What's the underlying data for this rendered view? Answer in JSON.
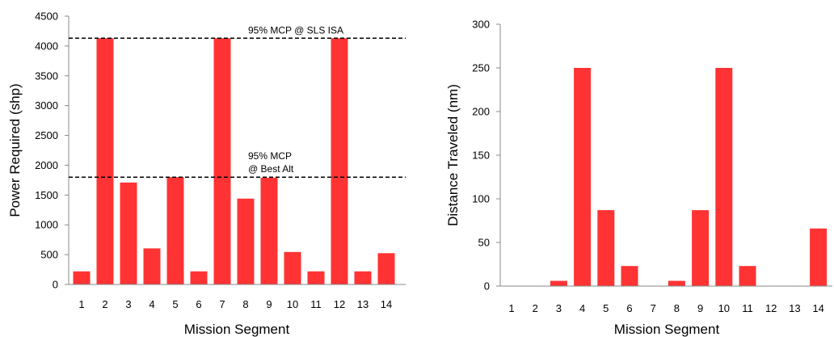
{
  "chart_data": [
    {
      "type": "bar",
      "categories": [
        "1",
        "2",
        "3",
        "4",
        "5",
        "6",
        "7",
        "8",
        "9",
        "10",
        "11",
        "12",
        "13",
        "14"
      ],
      "values": [
        220,
        4130,
        1710,
        605,
        1800,
        220,
        4130,
        1440,
        1790,
        545,
        220,
        4130,
        220,
        525
      ],
      "xlabel": "Mission Segment",
      "ylabel": "Power Required (shp)",
      "ylim": [
        0,
        4500
      ],
      "yticks": [
        0,
        500,
        1000,
        1500,
        2000,
        2500,
        3000,
        3500,
        4000,
        4500
      ],
      "bar_color": "#ff3333",
      "reference_lines": [
        {
          "value": 4130,
          "label_lines": [
            "95% MCP @ SLS ISA"
          ],
          "style": "dashed"
        },
        {
          "value": 1800,
          "label_lines": [
            "95% MCP",
            "@ Best Alt"
          ],
          "style": "dashed"
        }
      ],
      "grid": false,
      "legend": "none"
    },
    {
      "type": "bar",
      "categories": [
        "1",
        "2",
        "3",
        "4",
        "5",
        "6",
        "7",
        "8",
        "9",
        "10",
        "11",
        "12",
        "13",
        "14"
      ],
      "values": [
        0,
        0,
        6,
        250,
        87,
        23,
        0,
        6,
        87,
        250,
        23,
        0,
        0,
        66
      ],
      "xlabel": "Mission Segment",
      "ylabel": "Distance Traveled (nm)",
      "ylim": [
        0,
        300
      ],
      "yticks": [
        0,
        50,
        100,
        150,
        200,
        250,
        300
      ],
      "bar_color": "#ff3333",
      "grid": false,
      "legend": "none"
    }
  ]
}
